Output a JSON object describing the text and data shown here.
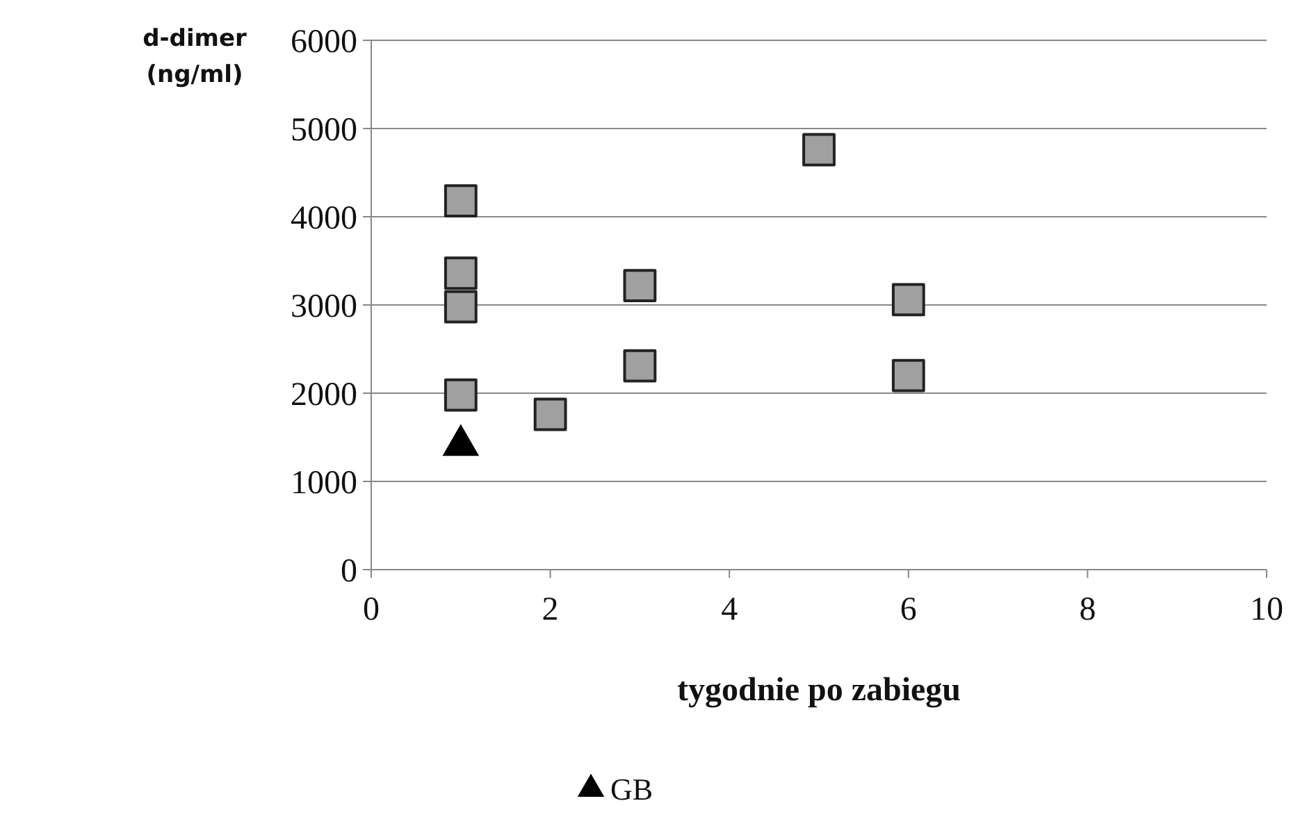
{
  "chart_data": {
    "type": "scatter",
    "xlabel": "tygodnie po zabiegu",
    "ylabel": "d-dimer (ng/ml)",
    "xlim": [
      0,
      10
    ],
    "ylim": [
      0,
      6000
    ],
    "xticks": [
      0,
      2,
      4,
      6,
      8,
      10
    ],
    "yticks": [
      0,
      1000,
      2000,
      3000,
      4000,
      5000,
      6000
    ],
    "grid": "y",
    "legend": "bottom",
    "series": [
      {
        "color": "#a0a0a0",
        "marker": "square",
        "x": [
          1,
          1,
          1,
          1,
          2,
          3,
          3,
          5,
          6,
          6
        ],
        "values": [
          4180,
          3360,
          2980,
          1980,
          1760,
          3220,
          2310,
          4760,
          3060,
          2200
        ]
      },
      {
        "name": "GB",
        "color": "#000000",
        "marker": "triangle",
        "x": [
          1
        ],
        "values": [
          1410
        ]
      }
    ]
  }
}
